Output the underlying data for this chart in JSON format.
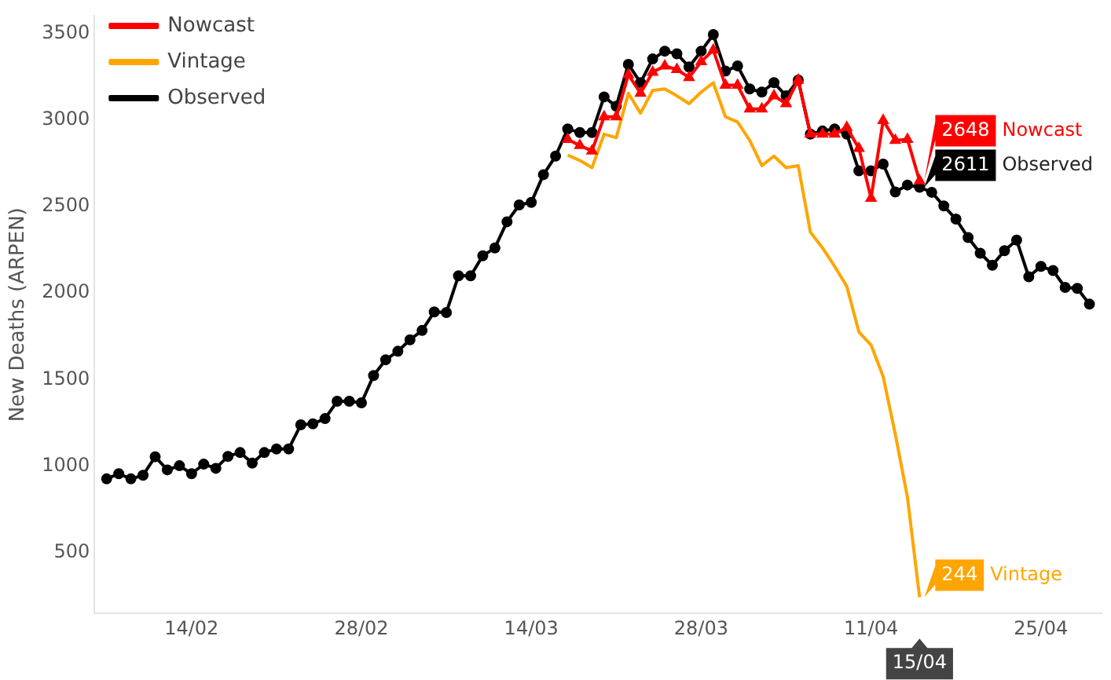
{
  "chart_data": {
    "type": "line",
    "ylabel": "New Deaths (ARPEN)",
    "xlim": [
      "--02-06",
      "--04-30"
    ],
    "xticks": [
      {
        "value": "--02-14",
        "label": "14/02"
      },
      {
        "value": "--02-28",
        "label": "28/02"
      },
      {
        "value": "--03-14",
        "label": "14/03"
      },
      {
        "value": "--03-28",
        "label": "28/03"
      },
      {
        "value": "--04-11",
        "label": "11/04"
      },
      {
        "value": "--04-25",
        "label": "25/04"
      }
    ],
    "ylim": [
      150,
      3600
    ],
    "yticks": [
      500,
      1000,
      1500,
      2000,
      2500,
      3000,
      3500
    ],
    "grid": false,
    "legend": "top left",
    "annotations": [
      "15/04"
    ],
    "series": [
      {
        "name": "Nowcast",
        "color": "#ff0000",
        "marker": "triangle",
        "x": [
          "--03-17",
          "--03-18",
          "--03-19",
          "--03-20",
          "--03-21",
          "--03-22",
          "--03-23",
          "--03-24",
          "--03-25",
          "--03-26",
          "--03-27",
          "--03-28",
          "--03-29",
          "--03-30",
          "--03-31",
          "--04-01",
          "--04-02",
          "--04-03",
          "--04-04",
          "--04-05",
          "--04-06",
          "--04-07",
          "--04-08",
          "--04-09",
          "--04-10",
          "--04-11",
          "--04-12",
          "--04-13",
          "--04-14",
          "--04-15"
        ],
        "values": [
          2888,
          2852,
          2821,
          3018,
          3018,
          3261,
          3154,
          3275,
          3312,
          3291,
          3245,
          3336,
          3403,
          3200,
          3200,
          3063,
          3063,
          3139,
          3094,
          3230,
          2918,
          2918,
          2918,
          2957,
          2836,
          2548,
          2997,
          2882,
          2888,
          2648
        ],
        "value_labels": [
          null,
          null,
          null,
          null,
          null,
          null,
          null,
          null,
          null,
          null,
          null,
          null,
          null,
          null,
          null,
          null,
          null,
          null,
          null,
          null,
          null,
          null,
          null,
          null,
          null,
          null,
          null,
          null,
          null,
          "2648"
        ]
      },
      {
        "name": "Vintage",
        "color": "#ffa500",
        "marker": "none",
        "x": [
          "--03-17",
          "--03-18",
          "--03-19",
          "--03-20",
          "--03-21",
          "--03-22",
          "--03-23",
          "--03-24",
          "--03-25",
          "--03-26",
          "--03-27",
          "--03-28",
          "--03-29",
          "--03-30",
          "--03-31",
          "--04-01",
          "--04-02",
          "--04-03",
          "--04-04",
          "--04-05",
          "--04-06",
          "--04-07",
          "--04-08",
          "--04-09",
          "--04-10",
          "--04-11",
          "--04-12",
          "--04-13",
          "--04-14",
          "--04-15"
        ],
        "values": [
          2797,
          2766,
          2724,
          2918,
          2897,
          3154,
          3039,
          3170,
          3179,
          3139,
          3094,
          3161,
          3215,
          3018,
          2988,
          2882,
          2736,
          2791,
          2724,
          2736,
          2352,
          2261,
          2154,
          2039,
          1775,
          1700,
          1518,
          1184,
          821,
          244
        ],
        "value_labels": [
          null,
          null,
          null,
          null,
          null,
          null,
          null,
          null,
          null,
          null,
          null,
          null,
          null,
          null,
          null,
          null,
          null,
          null,
          null,
          null,
          null,
          null,
          null,
          null,
          null,
          null,
          null,
          null,
          null,
          "244"
        ]
      },
      {
        "name": "Observed",
        "color": "#000000",
        "marker": "circle",
        "x": [
          "--02-07",
          "--02-08",
          "--02-09",
          "--02-10",
          "--02-11",
          "--02-12",
          "--02-13",
          "--02-14",
          "--02-15",
          "--02-16",
          "--02-17",
          "--02-18",
          "--02-19",
          "--02-20",
          "--02-21",
          "--02-22",
          "--02-23",
          "--02-24",
          "--02-25",
          "--02-26",
          "--02-27",
          "--02-28",
          "--03-01",
          "--03-02",
          "--03-03",
          "--03-04",
          "--03-05",
          "--03-06",
          "--03-07",
          "--03-08",
          "--03-09",
          "--03-10",
          "--03-11",
          "--03-12",
          "--03-13",
          "--03-14",
          "--03-15",
          "--03-16",
          "--03-17",
          "--03-18",
          "--03-19",
          "--03-20",
          "--03-21",
          "--03-22",
          "--03-23",
          "--03-24",
          "--03-25",
          "--03-26",
          "--03-27",
          "--03-28",
          "--03-29",
          "--03-30",
          "--03-31",
          "--04-01",
          "--04-02",
          "--04-03",
          "--04-04",
          "--04-05",
          "--04-06",
          "--04-07",
          "--04-08",
          "--04-09",
          "--04-10",
          "--04-11",
          "--04-12",
          "--04-13",
          "--04-14",
          "--04-15",
          "--04-16",
          "--04-17",
          "--04-18",
          "--04-19",
          "--04-20",
          "--04-21",
          "--04-22",
          "--04-23",
          "--04-24",
          "--04-25",
          "--04-26",
          "--04-27",
          "--04-28",
          "--04-29"
        ],
        "values": [
          927,
          957,
          927,
          948,
          1055,
          979,
          1003,
          957,
          1012,
          988,
          1057,
          1079,
          1018,
          1079,
          1100,
          1100,
          1239,
          1245,
          1275,
          1375,
          1375,
          1366,
          1524,
          1615,
          1664,
          1730,
          1784,
          1891,
          1888,
          2100,
          2100,
          2215,
          2261,
          2412,
          2509,
          2524,
          2684,
          2791,
          2948,
          2927,
          2927,
          3133,
          3079,
          3321,
          3215,
          3352,
          3397,
          3382,
          3306,
          3397,
          3493,
          3282,
          3312,
          3179,
          3161,
          3215,
          3139,
          3230,
          2918,
          2936,
          2948,
          2918,
          2706,
          2706,
          2745,
          2584,
          2624,
          2611,
          2582,
          2503,
          2427,
          2321,
          2230,
          2161,
          2245,
          2306,
          2094,
          2154,
          2130,
          2033,
          2027,
          1936
        ],
        "value_labels": [
          null,
          null,
          null,
          null,
          null,
          null,
          null,
          null,
          null,
          null,
          null,
          null,
          null,
          null,
          null,
          null,
          null,
          null,
          null,
          null,
          null,
          null,
          null,
          null,
          null,
          null,
          null,
          null,
          null,
          null,
          null,
          null,
          null,
          null,
          null,
          null,
          null,
          null,
          null,
          null,
          null,
          null,
          null,
          null,
          null,
          null,
          null,
          null,
          null,
          null,
          null,
          null,
          null,
          null,
          null,
          null,
          null,
          null,
          null,
          null,
          null,
          null,
          null,
          null,
          null,
          null,
          null,
          "2611",
          null,
          null,
          null,
          null,
          null,
          null,
          null,
          null,
          null,
          null,
          null,
          null,
          null,
          null
        ]
      }
    ]
  }
}
